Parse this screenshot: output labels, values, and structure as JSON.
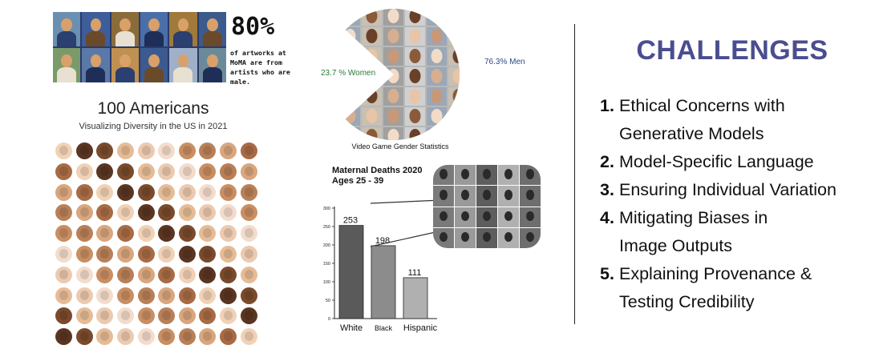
{
  "moma": {
    "stat": "80%",
    "caption": "of artworks at MoMA are from artists who are male.",
    "tile_colors": [
      "#6b8fb0",
      "#3d5e9a",
      "#8a6b3a",
      "#4a6fa8",
      "#a07a3a",
      "#3b5b8c",
      "#7a9a6a",
      "#5a78a8",
      "#c09050",
      "#3c5a90",
      "#9fb0c8",
      "#6a8a9a"
    ]
  },
  "americans": {
    "title": "100 Americans",
    "subtitle": "Visualizing Diversity in the US in 2021",
    "skin_palette": [
      "#f1d2b6",
      "#e6bc96",
      "#c98e62",
      "#a86b45",
      "#7a4a2c",
      "#f4dccc",
      "#d9a67e",
      "#5a3521",
      "#eccab0",
      "#b98058"
    ]
  },
  "game_pie": {
    "women_label": "23.7 % Women",
    "men_label": "76.3% Men",
    "women_fraction": 0.237,
    "caption": "Video Game Gender Statistics"
  },
  "chart_data": {
    "type": "bar",
    "title": "Maternal Deaths 2020\nAges 25 - 39",
    "categories": [
      "White",
      "Black",
      "Hispanic"
    ],
    "values": [
      253,
      198,
      111
    ],
    "ylim": [
      0,
      300
    ],
    "yticks": [
      "0",
      "50",
      "100",
      "150",
      "200",
      "250",
      "300"
    ],
    "bar_colors": [
      "#5a5a5a",
      "#8c8c8c",
      "#b0b0b0"
    ],
    "grid": false
  },
  "challenges": {
    "title": "CHALLENGES",
    "items": [
      {
        "num": "1.",
        "lines": [
          "Ethical Concerns with",
          "Generative Models"
        ]
      },
      {
        "num": "2.",
        "lines": [
          "Model-Specific Language"
        ]
      },
      {
        "num": "3.",
        "lines": [
          "Ensuring Individual Variation"
        ]
      },
      {
        "num": "4.",
        "lines": [
          "Mitigating Biases in",
          "Image Outputs"
        ]
      },
      {
        "num": "5.",
        "lines": [
          "Explaining Provenance &",
          "Testing Credibility"
        ]
      }
    ]
  }
}
